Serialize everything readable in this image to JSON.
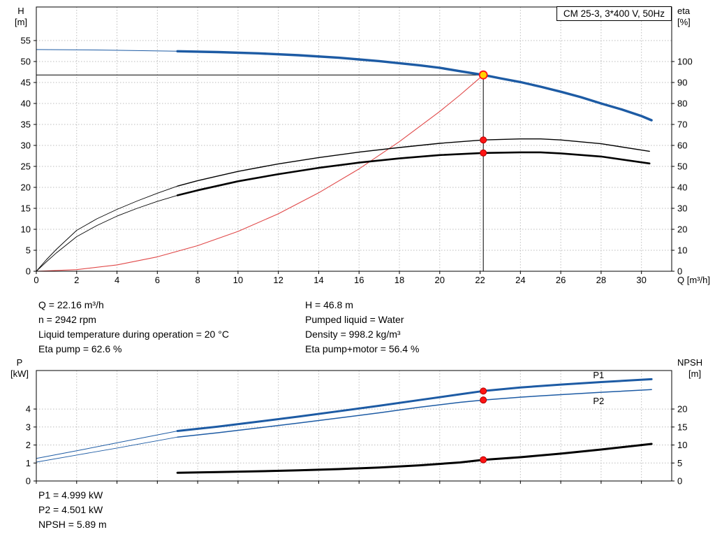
{
  "title_box": "CM 25-3, 3*400 V, 50Hz",
  "duty_info": {
    "left": [
      "Q = 22.16 m³/h",
      "n = 2942 rpm",
      "Liquid temperature during operation = 20 °C",
      "Eta pump = 62.6 %"
    ],
    "right": [
      "H = 46.8 m",
      "Pumped liquid = Water",
      "Density = 998.2 kg/m³",
      "Eta pump+motor = 56.4 %"
    ]
  },
  "power_info": [
    "P1 = 4.999 kW",
    "P2 = 4.501 kW",
    "NPSH = 5.89 m"
  ],
  "colors": {
    "blue": "#1d5ba4",
    "red_curve": "#e04848",
    "black": "#000000",
    "grid": "#bcbcbc",
    "marker_yellow": "#ffd400",
    "marker_red": "#ff1414",
    "marker_red_edge": "#b00000"
  },
  "chart_data": [
    {
      "type": "line",
      "name": "qh-eta-chart",
      "xlabel": "Q [m³/h]",
      "ylabel_left": [
        "H",
        "[m]"
      ],
      "ylabel_right": [
        "eta",
        "[%]"
      ],
      "xlim": [
        0,
        31.5
      ],
      "ylim_left": [
        0,
        63
      ],
      "ylim_right": [
        0,
        126
      ],
      "xticks": [
        0,
        2,
        4,
        6,
        8,
        10,
        12,
        14,
        16,
        18,
        20,
        22,
        24,
        26,
        28,
        30
      ],
      "yticks_left": [
        0,
        5,
        10,
        15,
        20,
        25,
        30,
        35,
        40,
        45,
        50,
        55
      ],
      "yticks_right": [
        0,
        10,
        20,
        30,
        40,
        50,
        60,
        70,
        80,
        90,
        100
      ],
      "grid": true,
      "crosshair": {
        "x": 22.16,
        "y": 46.8
      },
      "series": [
        {
          "name": "system-curve",
          "color": "red_curve",
          "width": 1.1,
          "axis": "left",
          "points": [
            [
              0,
              0
            ],
            [
              2,
              0.38
            ],
            [
              4,
              1.52
            ],
            [
              6,
              3.43
            ],
            [
              8,
              6.1
            ],
            [
              10,
              9.5
            ],
            [
              12,
              13.7
            ],
            [
              14,
              18.7
            ],
            [
              16,
              24.4
            ],
            [
              18,
              30.9
            ],
            [
              20,
              38.1
            ],
            [
              21,
              42.0
            ],
            [
              22.16,
              46.8
            ]
          ]
        },
        {
          "name": "eta-pump-lead",
          "color": "black",
          "width": 0.9,
          "axis": "right",
          "points": [
            [
              0,
              0
            ],
            [
              0.5,
              5.5
            ],
            [
              1,
              10.5
            ],
            [
              2,
              19.5
            ],
            [
              3,
              25
            ],
            [
              4,
              29.5
            ],
            [
              5,
              33.5
            ],
            [
              6,
              37.2
            ],
            [
              7,
              40.6
            ]
          ]
        },
        {
          "name": "eta-pump-curve",
          "color": "black",
          "width": 1.4,
          "axis": "right",
          "points": [
            [
              7,
              40.6
            ],
            [
              8,
              43.2
            ],
            [
              10,
              47.6
            ],
            [
              12,
              51.2
            ],
            [
              14,
              54.2
            ],
            [
              16,
              56.8
            ],
            [
              18,
              59.0
            ],
            [
              20,
              61.0
            ],
            [
              22.16,
              62.6
            ],
            [
              24,
              63.1
            ],
            [
              25,
              63.1
            ],
            [
              26,
              62.6
            ],
            [
              28,
              60.8
            ],
            [
              30.4,
              57.2
            ]
          ]
        },
        {
          "name": "eta-pump-motor-lead",
          "color": "black",
          "width": 0.9,
          "axis": "right",
          "points": [
            [
              0,
              0
            ],
            [
              0.5,
              4.5
            ],
            [
              1,
              8.8
            ],
            [
              2,
              16.5
            ],
            [
              3,
              21.8
            ],
            [
              4,
              26.3
            ],
            [
              5,
              30.0
            ],
            [
              6,
              33.3
            ],
            [
              7,
              36.2
            ]
          ]
        },
        {
          "name": "eta-pump-motor-curve",
          "color": "black",
          "width": 2.6,
          "axis": "right",
          "points": [
            [
              7,
              36.2
            ],
            [
              8,
              38.6
            ],
            [
              10,
              42.9
            ],
            [
              12,
              46.3
            ],
            [
              14,
              49.3
            ],
            [
              16,
              51.8
            ],
            [
              18,
              53.8
            ],
            [
              20,
              55.4
            ],
            [
              22.16,
              56.4
            ],
            [
              24,
              56.7
            ],
            [
              25,
              56.7
            ],
            [
              26,
              56.2
            ],
            [
              28,
              54.7
            ],
            [
              30.4,
              51.4
            ]
          ]
        },
        {
          "name": "qh-lead",
          "color": "blue",
          "width": 1,
          "axis": "left",
          "points": [
            [
              0,
              52.85
            ],
            [
              3,
              52.75
            ],
            [
              5,
              52.6
            ],
            [
              7,
              52.45
            ]
          ]
        },
        {
          "name": "qh-curve",
          "color": "blue",
          "width": 3.4,
          "axis": "left",
          "points": [
            [
              7,
              52.45
            ],
            [
              9,
              52.25
            ],
            [
              11,
              51.95
            ],
            [
              13,
              51.5
            ],
            [
              15,
              50.9
            ],
            [
              17,
              50.1
            ],
            [
              19,
              49.1
            ],
            [
              20,
              48.5
            ],
            [
              21,
              47.7
            ],
            [
              22.16,
              46.8
            ],
            [
              23,
              46.0
            ],
            [
              24,
              45.1
            ],
            [
              25,
              44.0
            ],
            [
              26,
              42.8
            ],
            [
              27,
              41.5
            ],
            [
              28,
              40.0
            ],
            [
              29,
              38.6
            ],
            [
              30,
              37.0
            ],
            [
              30.5,
              36.0
            ]
          ]
        }
      ],
      "markers": [
        {
          "name": "eta-pump-point",
          "x": 22.16,
          "y": 62.6,
          "axis": "right",
          "r": 4.5,
          "fill": "marker_red",
          "stroke": "marker_red_edge",
          "stroke_width": 1
        },
        {
          "name": "eta-pump-motor-point",
          "x": 22.16,
          "y": 56.4,
          "axis": "right",
          "r": 4.5,
          "fill": "marker_red",
          "stroke": "marker_red_edge",
          "stroke_width": 1
        },
        {
          "name": "duty-point",
          "x": 22.16,
          "y": 46.8,
          "axis": "left",
          "r": 5.5,
          "fill": "marker_yellow",
          "stroke": "marker_red",
          "stroke_width": 1.8
        }
      ],
      "labels": []
    },
    {
      "type": "line",
      "name": "power-npsh-chart",
      "xlabel": "",
      "ylabel_left": [
        "P",
        "[kW]"
      ],
      "ylabel_right": [
        "NPSH",
        "[m]"
      ],
      "xlim": [
        0,
        31.5
      ],
      "ylim_left": [
        0,
        6.14
      ],
      "ylim_right": [
        0,
        30.7
      ],
      "xticks": [
        0,
        2,
        4,
        6,
        8,
        10,
        12,
        14,
        16,
        18,
        20,
        22,
        24,
        26,
        28,
        30
      ],
      "xtick_labels": false,
      "yticks_left": [
        0,
        1,
        2,
        3,
        4
      ],
      "yticks_right": [
        0,
        5,
        10,
        15,
        20
      ],
      "grid": true,
      "series": [
        {
          "name": "p1-lead",
          "color": "blue",
          "width": 1,
          "axis": "left",
          "points": [
            [
              0,
              1.25
            ],
            [
              2,
              1.68
            ],
            [
              4,
              2.12
            ],
            [
              6,
              2.56
            ],
            [
              7,
              2.78
            ]
          ]
        },
        {
          "name": "p1-curve",
          "color": "blue",
          "width": 3,
          "axis": "left",
          "points": [
            [
              7,
              2.78
            ],
            [
              9,
              3.02
            ],
            [
              11,
              3.3
            ],
            [
              13,
              3.58
            ],
            [
              15,
              3.88
            ],
            [
              17,
              4.18
            ],
            [
              19,
              4.5
            ],
            [
              21,
              4.82
            ],
            [
              22.16,
              5.0
            ],
            [
              24,
              5.2
            ],
            [
              26,
              5.36
            ],
            [
              28,
              5.5
            ],
            [
              30.5,
              5.66
            ]
          ]
        },
        {
          "name": "p2-lead",
          "color": "blue",
          "width": 0.9,
          "axis": "left",
          "points": [
            [
              0,
              1.05
            ],
            [
              2,
              1.44
            ],
            [
              4,
              1.83
            ],
            [
              6,
              2.24
            ],
            [
              7,
              2.44
            ]
          ]
        },
        {
          "name": "p2-curve",
          "color": "blue",
          "width": 1.5,
          "axis": "left",
          "points": [
            [
              7,
              2.44
            ],
            [
              9,
              2.68
            ],
            [
              11,
              2.95
            ],
            [
              13,
              3.22
            ],
            [
              15,
              3.5
            ],
            [
              17,
              3.79
            ],
            [
              19,
              4.1
            ],
            [
              21,
              4.37
            ],
            [
              22.16,
              4.5
            ],
            [
              24,
              4.66
            ],
            [
              26,
              4.8
            ],
            [
              28,
              4.93
            ],
            [
              30.5,
              5.08
            ]
          ]
        },
        {
          "name": "npsh-curve",
          "color": "black",
          "width": 3,
          "axis": "right",
          "points": [
            [
              7,
              2.3
            ],
            [
              9,
              2.48
            ],
            [
              11,
              2.7
            ],
            [
              13,
              2.95
            ],
            [
              15,
              3.3
            ],
            [
              17,
              3.75
            ],
            [
              19,
              4.35
            ],
            [
              21,
              5.15
            ],
            [
              22.16,
              5.89
            ],
            [
              24,
              6.6
            ],
            [
              26,
              7.6
            ],
            [
              28,
              8.75
            ],
            [
              30.5,
              10.3
            ]
          ]
        }
      ],
      "markers": [
        {
          "name": "p1-point",
          "x": 22.16,
          "y": 4.999,
          "axis": "left",
          "r": 4.5,
          "fill": "marker_red",
          "stroke": "marker_red_edge",
          "stroke_width": 1
        },
        {
          "name": "p2-point",
          "x": 22.16,
          "y": 4.501,
          "axis": "left",
          "r": 4.5,
          "fill": "marker_red",
          "stroke": "marker_red_edge",
          "stroke_width": 1
        },
        {
          "name": "npsh-point",
          "x": 22.16,
          "y": 5.89,
          "axis": "right",
          "r": 4.5,
          "fill": "marker_red",
          "stroke": "marker_red_edge",
          "stroke_width": 1
        }
      ],
      "labels": [
        {
          "text": "P1",
          "x": 27.6,
          "y": 5.72,
          "axis": "left",
          "color": "blue"
        },
        {
          "text": "P2",
          "x": 27.6,
          "y": 4.28,
          "axis": "left",
          "color": "blue"
        }
      ]
    }
  ]
}
